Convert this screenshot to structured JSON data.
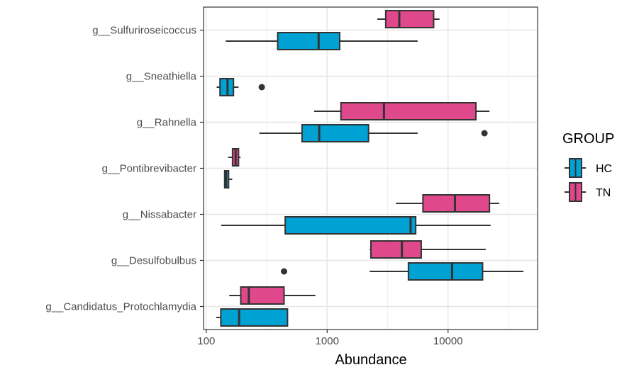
{
  "chart_data": {
    "type": "boxplot",
    "orientation": "horizontal",
    "x_scale": "log10",
    "xlim": [
      95,
      55000
    ],
    "xlabel": "Abundance",
    "ylabel": "",
    "x_ticks": [
      {
        "value": 100,
        "label": "100"
      },
      {
        "value": 1000,
        "label": "1000"
      },
      {
        "value": 10000,
        "label": "10000"
      }
    ],
    "grid": true,
    "legend": {
      "title": "GROUP",
      "position": "right",
      "entries": [
        {
          "name": "HC",
          "color": "#00A2D3"
        },
        {
          "name": "TN",
          "color": "#E0488C"
        }
      ]
    },
    "categories": [
      "g__Sulfuriroseicoccus",
      "g__Sneathiella",
      "g__Rahnella",
      "g__Pontibrevibacter",
      "g__Nissabacter",
      "g__Desulfobulbus",
      "g__Candidatus_Protochlamydia"
    ],
    "series": [
      {
        "name": "HC",
        "color": "#00A2D3",
        "boxes": [
          {
            "category": "g__Sulfuriroseicoccus",
            "whisker_low": 145,
            "q1": 390,
            "median": 850,
            "q3": 1270,
            "whisker_high": 5600,
            "outliers": []
          },
          {
            "category": "g__Sneathiella",
            "whisker_low": 122,
            "q1": 130,
            "median": 150,
            "q3": 168,
            "whisker_high": 185,
            "outliers": [
              288
            ]
          },
          {
            "category": "g__Rahnella",
            "whisker_low": 275,
            "q1": 620,
            "median": 860,
            "q3": 2200,
            "whisker_high": 5600,
            "outliers": [
              20000
            ]
          },
          {
            "category": "g__Pontibrevibacter",
            "whisker_low": 141,
            "q1": 142,
            "median": 146,
            "q3": 153,
            "whisker_high": 164,
            "outliers": []
          },
          {
            "category": "g__Nissabacter",
            "whisker_low": 133,
            "q1": 450,
            "median": 4900,
            "q3": 5400,
            "whisker_high": 22500,
            "outliers": []
          },
          {
            "category": "g__Desulfobulbus",
            "whisker_low": 2250,
            "q1": 4700,
            "median": 10800,
            "q3": 19300,
            "whisker_high": 42000,
            "outliers": [
              440
            ]
          },
          {
            "category": "g__Candidatus_Protochlamydia",
            "whisker_low": 121,
            "q1": 132,
            "median": 187,
            "q3": 470,
            "whisker_high": 475,
            "outliers": []
          }
        ]
      },
      {
        "name": "TN",
        "color": "#E0488C",
        "boxes": [
          {
            "category": "g__Sulfuriroseicoccus",
            "whisker_low": 2600,
            "q1": 3050,
            "median": 3950,
            "q3": 7600,
            "whisker_high": 8500,
            "outliers": []
          },
          {
            "category": "g__Sneathiella",
            "absent": true
          },
          {
            "category": "g__Rahnella",
            "whisker_low": 780,
            "q1": 1300,
            "median": 2950,
            "q3": 17000,
            "whisker_high": 22000,
            "outliers": []
          },
          {
            "category": "g__Pontibrevibacter",
            "whisker_low": 152,
            "q1": 165,
            "median": 175,
            "q3": 185,
            "whisker_high": 192,
            "outliers": []
          },
          {
            "category": "g__Nissabacter",
            "whisker_low": 3700,
            "q1": 6200,
            "median": 11400,
            "q3": 22000,
            "whisker_high": 26500,
            "outliers": []
          },
          {
            "category": "g__Desulfobulbus",
            "whisker_low": 2250,
            "q1": 2300,
            "median": 4150,
            "q3": 6000,
            "whisker_high": 20500,
            "outliers": []
          },
          {
            "category": "g__Candidatus_Protochlamydia",
            "whisker_low": 155,
            "q1": 193,
            "median": 225,
            "q3": 440,
            "whisker_high": 800,
            "outliers": []
          }
        ]
      }
    ]
  }
}
